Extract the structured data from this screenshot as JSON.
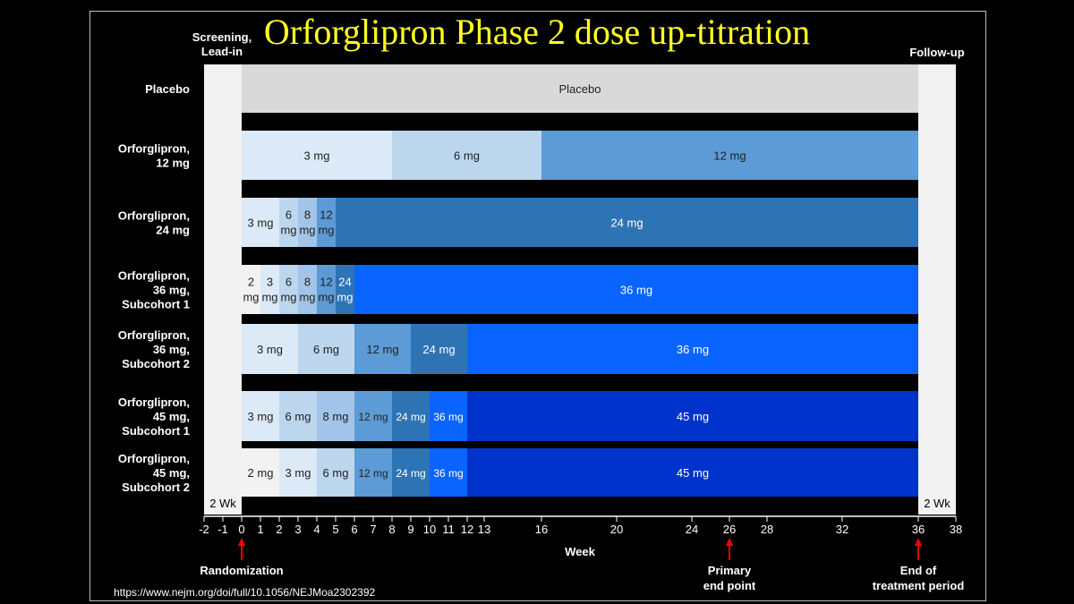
{
  "title": "Orforglipron Phase 2 dose up-titration",
  "header": {
    "screening": [
      "Screening,",
      "Lead-in"
    ],
    "followup": "Follow-up"
  },
  "side_period_label": "2 Wk",
  "source_url": "https://www.nejm.org/doi/full/10.1056/NEJMoa2302392",
  "chart_data": {
    "type": "gantt",
    "title": "Orforglipron Phase 2 dose up-titration",
    "xlabel": "Week",
    "xlim": [
      -2,
      38
    ],
    "x_ticks": [
      -2,
      -1,
      0,
      1,
      2,
      3,
      4,
      5,
      6,
      7,
      8,
      9,
      10,
      11,
      12,
      13,
      16,
      20,
      24,
      26,
      28,
      32,
      36,
      38
    ],
    "screening_period": {
      "start": -2,
      "end": 0,
      "label": "2 Wk"
    },
    "followup_period": {
      "start": 36,
      "end": 38,
      "label": "2 Wk"
    },
    "arms": [
      {
        "label": [
          "Placebo"
        ],
        "segments": [
          {
            "start": 0,
            "end": 36,
            "dose": "Placebo",
            "color": "#d9d9d9"
          }
        ]
      },
      {
        "label": [
          "Orforglipron,",
          "12 mg"
        ],
        "segments": [
          {
            "start": 0,
            "end": 8,
            "dose": "3 mg",
            "color": "#dce9f6"
          },
          {
            "start": 8,
            "end": 16,
            "dose": "6 mg",
            "color": "#bcd6ee"
          },
          {
            "start": 16,
            "end": 36,
            "dose": "12 mg",
            "color": "#5c9bd5"
          }
        ]
      },
      {
        "label": [
          "Orforglipron,",
          "24 mg"
        ],
        "segments": [
          {
            "start": 0,
            "end": 2,
            "dose": "3 mg",
            "color": "#dce9f6"
          },
          {
            "start": 2,
            "end": 3,
            "dose": "6 mg",
            "color": "#bcd6ee"
          },
          {
            "start": 3,
            "end": 4,
            "dose": "8 mg",
            "color": "#a2c4e8"
          },
          {
            "start": 4,
            "end": 5,
            "dose": "12 mg",
            "color": "#5c9bd5"
          },
          {
            "start": 5,
            "end": 36,
            "dose": "24 mg",
            "color": "#2e74b5"
          }
        ]
      },
      {
        "label": [
          "Orforglipron,",
          "36 mg,",
          "Subcohort 1"
        ],
        "segments": [
          {
            "start": 0,
            "end": 1,
            "dose": "2 mg",
            "color": "#f2f2f2"
          },
          {
            "start": 1,
            "end": 2,
            "dose": "3 mg",
            "color": "#dce9f6"
          },
          {
            "start": 2,
            "end": 3,
            "dose": "6 mg",
            "color": "#bcd6ee"
          },
          {
            "start": 3,
            "end": 4,
            "dose": "8 mg",
            "color": "#a2c4e8"
          },
          {
            "start": 4,
            "end": 5,
            "dose": "12 mg",
            "color": "#5c9bd5"
          },
          {
            "start": 5,
            "end": 6,
            "dose": "24 mg",
            "color": "#2e74b5"
          },
          {
            "start": 6,
            "end": 36,
            "dose": "36 mg",
            "color": "#0a64ff"
          }
        ]
      },
      {
        "label": [
          "Orforglipron,",
          "36 mg,",
          "Subcohort 2"
        ],
        "segments": [
          {
            "start": 0,
            "end": 3,
            "dose": "3 mg",
            "color": "#dce9f6"
          },
          {
            "start": 3,
            "end": 6,
            "dose": "6 mg",
            "color": "#bcd6ee"
          },
          {
            "start": 6,
            "end": 9,
            "dose": "12 mg",
            "color": "#5c9bd5"
          },
          {
            "start": 9,
            "end": 12,
            "dose": "24 mg",
            "color": "#2e74b5"
          },
          {
            "start": 12,
            "end": 36,
            "dose": "36 mg",
            "color": "#0a64ff"
          }
        ]
      },
      {
        "label": [
          "Orforglipron,",
          "45 mg,",
          "Subcohort 1"
        ],
        "segments": [
          {
            "start": 0,
            "end": 2,
            "dose": "3 mg",
            "color": "#dce9f6"
          },
          {
            "start": 2,
            "end": 4,
            "dose": "6 mg",
            "color": "#bcd6ee"
          },
          {
            "start": 4,
            "end": 6,
            "dose": "8 mg",
            "color": "#a2c4e8"
          },
          {
            "start": 6,
            "end": 8,
            "dose": "12 mg",
            "color": "#5c9bd5"
          },
          {
            "start": 8,
            "end": 10,
            "dose": "24 mg",
            "color": "#2e74b5"
          },
          {
            "start": 10,
            "end": 12,
            "dose": "36 mg",
            "color": "#0a64ff"
          },
          {
            "start": 12,
            "end": 36,
            "dose": "45 mg",
            "color": "#0033cc"
          }
        ]
      },
      {
        "label": [
          "Orforglipron,",
          "45 mg,",
          "Subcohort 2"
        ],
        "segments": [
          {
            "start": 0,
            "end": 2,
            "dose": "2 mg",
            "color": "#f2f2f2"
          },
          {
            "start": 2,
            "end": 4,
            "dose": "3 mg",
            "color": "#dce9f6"
          },
          {
            "start": 4,
            "end": 6,
            "dose": "6 mg",
            "color": "#bcd6ee"
          },
          {
            "start": 6,
            "end": 8,
            "dose": "12 mg",
            "color": "#5c9bd5"
          },
          {
            "start": 8,
            "end": 10,
            "dose": "24 mg",
            "color": "#2e74b5"
          },
          {
            "start": 10,
            "end": 12,
            "dose": "36 mg",
            "color": "#0a64ff"
          },
          {
            "start": 12,
            "end": 36,
            "dose": "45 mg",
            "color": "#0033cc"
          }
        ]
      }
    ],
    "markers": [
      {
        "week": 0,
        "label": [
          "Randomization"
        ]
      },
      {
        "week": 26,
        "label": [
          "Primary",
          "end point"
        ]
      },
      {
        "week": 36,
        "label": [
          "End of",
          "treatment period"
        ]
      }
    ]
  }
}
